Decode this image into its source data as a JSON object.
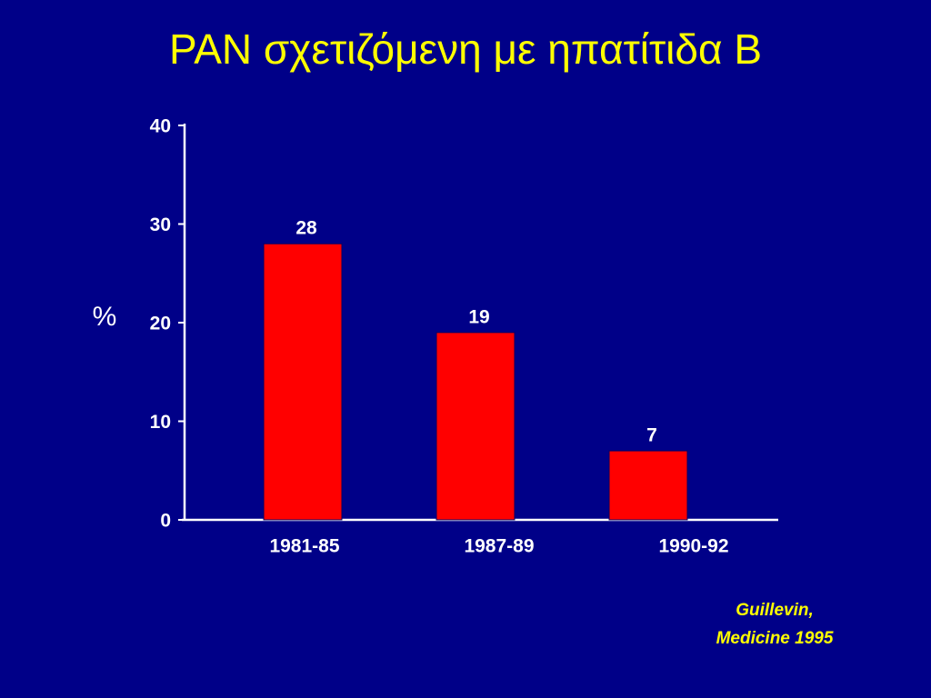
{
  "chart_data": {
    "type": "bar",
    "title": "PAN σχετιζόμενη με ηπατίτιδα Β",
    "y_label": "%",
    "categories": [
      "1981-85",
      "1987-89",
      "1990-92"
    ],
    "values": [
      28,
      19,
      7
    ],
    "color": "#ff0000",
    "ylim": [
      0,
      40
    ],
    "yticks": [
      0,
      10,
      20,
      30,
      40
    ],
    "source": [
      "Guillevin,",
      "Medicine 1995"
    ]
  }
}
